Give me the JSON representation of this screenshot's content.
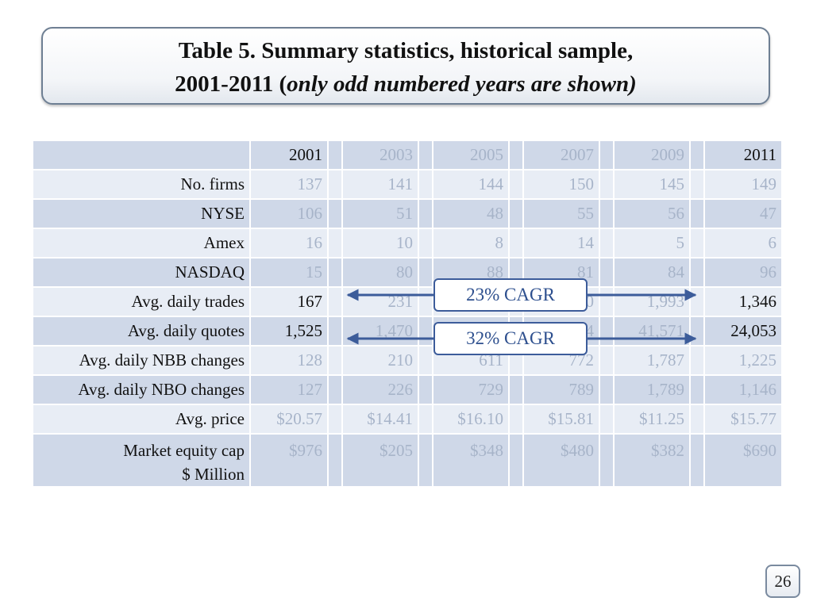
{
  "title": {
    "line1": "Table 5. Summary statistics, historical sample,",
    "line2_prefix": "2001-2011 (",
    "line2_italic": "only odd numbered years are shown)"
  },
  "table": {
    "years": [
      "2001",
      "2003",
      "2005",
      "2007",
      "2009",
      "2011"
    ],
    "rows": [
      {
        "label": "No. firms",
        "values": [
          "137",
          "141",
          "144",
          "150",
          "145",
          "149"
        ]
      },
      {
        "label": "NYSE",
        "values": [
          "106",
          "51",
          "48",
          "55",
          "56",
          "47"
        ]
      },
      {
        "label": "Amex",
        "values": [
          "16",
          "10",
          "8",
          "14",
          "5",
          "6"
        ]
      },
      {
        "label": "NASDAQ",
        "values": [
          "15",
          "80",
          "88",
          "81",
          "84",
          "96"
        ]
      },
      {
        "label": "Avg. daily trades",
        "values": [
          "167",
          "231",
          "",
          "0",
          "1,993",
          "1,346"
        ]
      },
      {
        "label": "Avg. daily quotes",
        "values": [
          "1,525",
          "1,470",
          "",
          "4",
          "41,571",
          "24,053"
        ]
      },
      {
        "label": "Avg. daily NBB changes",
        "values": [
          "128",
          "210",
          "611",
          "772",
          "1,787",
          "1,225"
        ]
      },
      {
        "label": "Avg. daily NBO changes",
        "values": [
          "127",
          "226",
          "729",
          "789",
          "1,789",
          "1,146"
        ]
      },
      {
        "label": "Avg. price",
        "values": [
          "$20.57",
          "$14.41",
          "$16.10",
          "$15.81",
          "$11.25",
          "$15.77"
        ]
      },
      {
        "label_line1": "Market equity cap",
        "label_line2": "$ Million",
        "values": [
          "$976",
          "$205",
          "$348",
          "$480",
          "$382",
          "$690"
        ]
      }
    ]
  },
  "callouts": {
    "trades_cagr": "23% CAGR",
    "quotes_cagr": "32% CAGR"
  },
  "colors": {
    "arrow": "#3c5c9a",
    "dim_text": "#a7b4c9"
  },
  "page_number": "26"
}
